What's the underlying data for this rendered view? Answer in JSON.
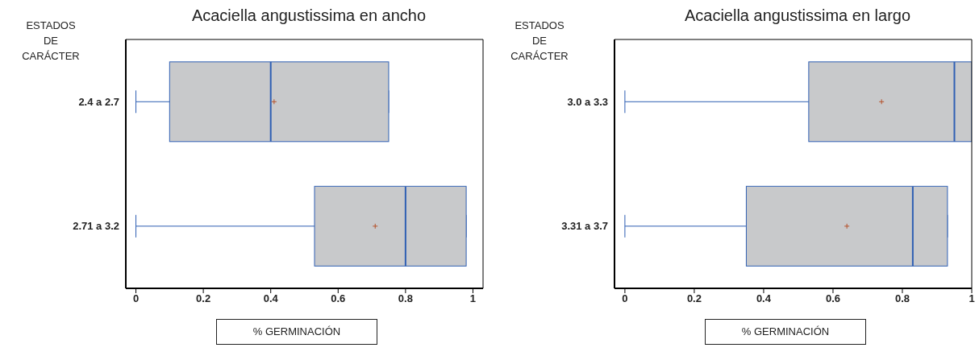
{
  "chart_data": [
    {
      "type": "box",
      "orientation": "horizontal",
      "title": "Acaciella angustissima en ancho",
      "ylabel": "ESTADOS DE CARÁCTER",
      "xlabel": "% GERMINACIÓN",
      "categories": [
        "2.4 a 2.7",
        "2.71 a 3.2"
      ],
      "boxes": [
        {
          "low": 0,
          "q1": 0.1,
          "median": 0.4,
          "q3": 0.75,
          "high": 0.75,
          "mean": 0.41
        },
        {
          "low": 0,
          "q1": 0.53,
          "median": 0.8,
          "q3": 0.98,
          "high": 0.98,
          "mean": 0.71
        }
      ],
      "xlim": [
        -0.03,
        1.03
      ],
      "xticks": [
        0,
        0.2,
        0.4,
        0.6,
        0.8,
        1
      ]
    },
    {
      "type": "box",
      "orientation": "horizontal",
      "title": "Acaciella angustissima en largo",
      "ylabel": "ESTADOS DE CARÁCTER",
      "xlabel": "% GERMINACIÓN",
      "categories": [
        "3.0 a 3.3",
        "3.31 a 3.7"
      ],
      "boxes": [
        {
          "low": 0,
          "q1": 0.53,
          "median": 0.95,
          "q3": 1,
          "high": 1,
          "mean": 0.74
        },
        {
          "low": 0,
          "q1": 0.35,
          "median": 0.83,
          "q3": 0.93,
          "high": 0.93,
          "mean": 0.64
        }
      ],
      "xlim": [
        -0.03,
        1.0
      ],
      "xticks": [
        0,
        0.2,
        0.4,
        0.6,
        0.8,
        1
      ]
    }
  ]
}
